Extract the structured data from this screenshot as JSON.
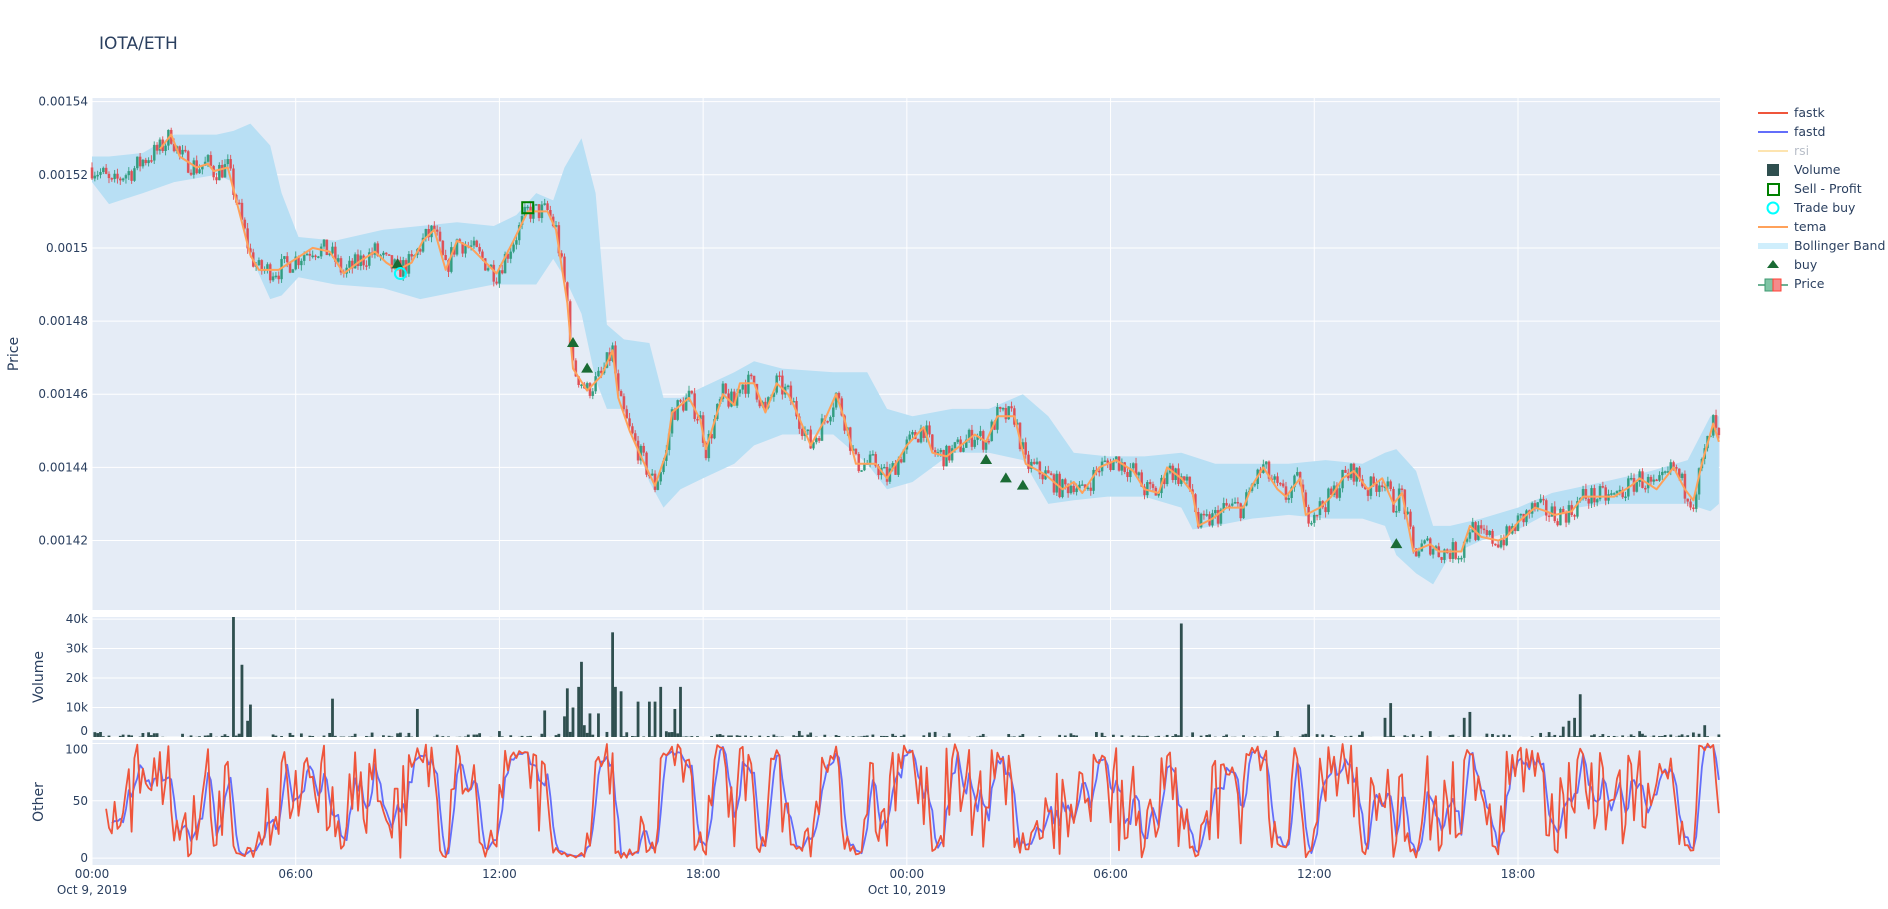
{
  "title": "IOTA/ETH",
  "chart_data": [
    {
      "type": "candlestick",
      "panel": "price",
      "ylabel": "Price",
      "ylim": [
        0.001401,
        0.001541
      ],
      "y_ticks": [
        "0.00142",
        "0.00144",
        "0.00146",
        "0.00148",
        "0.0015",
        "0.00152",
        "0.00154"
      ],
      "y_tick_values": [
        0.00142,
        0.00144,
        0.00146,
        0.00148,
        0.0015,
        0.00152,
        0.00154
      ],
      "grid": true,
      "price": {
        "time": [
          "2019-10-09 00:00",
          "2019-10-09 00:20",
          "2019-10-09 00:35",
          "2019-10-09 00:55",
          "2019-10-09 01:10",
          "2019-10-09 01:30",
          "2019-10-09 01:50",
          "2019-10-09 02:00",
          "2019-10-09 02:20",
          "2019-10-09 02:35",
          "2019-10-09 03:05",
          "2019-10-09 03:25",
          "2019-10-09 03:35",
          "2019-10-09 04:00",
          "2019-10-09 04:20",
          "2019-10-09 04:40",
          "2019-10-09 04:55",
          "2019-10-09 05:30",
          "2019-10-09 06:00",
          "2019-10-09 06:30",
          "2019-10-09 07:00",
          "2019-10-09 07:25",
          "2019-10-09 07:50",
          "2019-10-09 08:20",
          "2019-10-09 08:40",
          "2019-10-09 09:00",
          "2019-10-09 09:25",
          "2019-10-09 09:45",
          "2019-10-09 10:05",
          "2019-10-09 10:25",
          "2019-10-09 10:45",
          "2019-10-09 11:10",
          "2019-10-09 11:55",
          "2019-10-09 12:25",
          "2019-10-09 12:50",
          "2019-10-09 13:25",
          "2019-10-09 13:40",
          "2019-10-09 14:00",
          "2019-10-09 14:10",
          "2019-10-09 14:35",
          "2019-10-09 15:00",
          "2019-10-09 15:20",
          "2019-10-09 15:30",
          "2019-10-09 15:50",
          "2019-10-09 16:10",
          "2019-10-09 16:35",
          "2019-10-09 16:55",
          "2019-10-09 17:05",
          "2019-10-09 17:35",
          "2019-10-09 17:55",
          "2019-10-09 18:05",
          "2019-10-09 18:35",
          "2019-10-09 18:55",
          "2019-10-09 19:05",
          "2019-10-09 19:30",
          "2019-10-09 19:50",
          "2019-10-09 20:10",
          "2019-10-09 20:30",
          "2019-10-09 20:40",
          "2019-10-09 21:10",
          "2019-10-09 21:35",
          "2019-10-09 21:55",
          "2019-10-09 22:10",
          "2019-10-09 22:30",
          "2019-10-09 23:05",
          "2019-10-09 23:25",
          "2019-10-10 00:00",
          "2019-10-10 00:30",
          "2019-10-10 00:45",
          "2019-10-10 01:10",
          "2019-10-10 02:00",
          "2019-10-10 02:20",
          "2019-10-10 02:40",
          "2019-10-10 03:10",
          "2019-10-10 03:30",
          "2019-10-10 04:05",
          "2019-10-10 04:35",
          "2019-10-10 04:55",
          "2019-10-10 05:10",
          "2019-10-10 05:40",
          "2019-10-10 06:10",
          "2019-10-10 06:40",
          "2019-10-10 07:00",
          "2019-10-10 07:25",
          "2019-10-10 07:40",
          "2019-10-10 08:05",
          "2019-10-10 08:25",
          "2019-10-10 08:35",
          "2019-10-10 09:00",
          "2019-10-10 09:25",
          "2019-10-10 09:55",
          "2019-10-10 10:10",
          "2019-10-10 10:30",
          "2019-10-10 10:55",
          "2019-10-10 11:10",
          "2019-10-10 11:35",
          "2019-10-10 11:45",
          "2019-10-10 12:10",
          "2019-10-10 12:30",
          "2019-10-10 12:50",
          "2019-10-10 13:10",
          "2019-10-10 13:35",
          "2019-10-10 14:00",
          "2019-10-10 14:20",
          "2019-10-10 14:35",
          "2019-10-10 14:55",
          "2019-10-10 15:25",
          "2019-10-10 15:40",
          "2019-10-10 16:20",
          "2019-10-10 16:35",
          "2019-10-10 16:55",
          "2019-10-10 17:25",
          "2019-10-10 17:40",
          "2019-10-10 18:00",
          "2019-10-10 18:30",
          "2019-10-10 18:50",
          "2019-10-10 19:05",
          "2019-10-10 19:35",
          "2019-10-10 19:55",
          "2019-10-10 20:20",
          "2019-10-10 20:50",
          "2019-10-10 21:20",
          "2019-10-10 21:35",
          "2019-10-10 22:05",
          "2019-10-10 22:35",
          "2019-10-10 22:55",
          "2019-10-10 23:10",
          "2019-10-10 23:25",
          "2019-10-10 23:45",
          "2019-10-10 23:55"
        ],
        "close": [
          0.001522,
          0.00152,
          0.001517,
          0.00152,
          0.001521,
          0.001524,
          0.001526,
          0.001527,
          0.001531,
          0.001525,
          0.001522,
          0.001523,
          0.001521,
          0.001522,
          0.00151,
          0.001498,
          0.001494,
          0.001494,
          0.001497,
          0.0015,
          0.001499,
          0.001493,
          0.001496,
          0.001499,
          0.001496,
          0.001494,
          0.001496,
          0.001502,
          0.001505,
          0.001494,
          0.001502,
          0.0015,
          0.001493,
          0.001502,
          0.00151,
          0.00151,
          0.001505,
          0.001485,
          0.001467,
          0.001461,
          0.001465,
          0.001472,
          0.001459,
          0.00145,
          0.001443,
          0.001435,
          0.001444,
          0.001455,
          0.001459,
          0.001453,
          0.001445,
          0.00146,
          0.001457,
          0.001463,
          0.001463,
          0.001455,
          0.001463,
          0.00146,
          0.001457,
          0.001446,
          0.001453,
          0.00146,
          0.001453,
          0.001441,
          0.001441,
          0.001437,
          0.001446,
          0.001451,
          0.001444,
          0.001443,
          0.001449,
          0.001447,
          0.001454,
          0.001454,
          0.001441,
          0.001438,
          0.001434,
          0.001436,
          0.001433,
          0.00144,
          0.001442,
          0.001439,
          0.001434,
          0.001433,
          0.00144,
          0.001437,
          0.001433,
          0.001424,
          0.001426,
          0.001429,
          0.001429,
          0.001435,
          0.00144,
          0.001434,
          0.001432,
          0.001437,
          0.001427,
          0.001429,
          0.001432,
          0.001437,
          0.001439,
          0.001434,
          0.001437,
          0.00143,
          0.001433,
          0.001417,
          0.001419,
          0.001417,
          0.001417,
          0.001424,
          0.001421,
          0.00142,
          0.001421,
          0.001425,
          0.001429,
          0.001428,
          0.001427,
          0.001428,
          0.001432,
          0.001432,
          0.001432,
          0.001435,
          0.001437,
          0.001434,
          0.00144,
          0.001434,
          0.001431,
          0.001441,
          0.001452,
          0.001447
        ]
      },
      "tema_start": "2019-10-09 02:00",
      "bollinger": {
        "time": [
          "2019-10-09 00:00",
          "2019-10-09 00:30",
          "2019-10-09 01:30",
          "2019-10-09 02:25",
          "2019-10-09 03:40",
          "2019-10-09 04:10",
          "2019-10-09 04:40",
          "2019-10-09 05:15",
          "2019-10-09 05:35",
          "2019-10-09 06:05",
          "2019-10-09 07:10",
          "2019-10-09 08:35",
          "2019-10-09 09:40",
          "2019-10-09 10:45",
          "2019-10-09 11:50",
          "2019-10-09 12:30",
          "2019-10-09 13:05",
          "2019-10-09 13:35",
          "2019-10-09 13:55",
          "2019-10-09 14:25",
          "2019-10-09 14:50",
          "2019-10-09 15:10",
          "2019-10-09 15:40",
          "2019-10-09 16:25",
          "2019-10-09 16:50",
          "2019-10-09 17:20",
          "2019-10-09 18:00",
          "2019-10-09 18:55",
          "2019-10-09 19:30",
          "2019-10-09 20:20",
          "2019-10-09 21:50",
          "2019-10-09 22:50",
          "2019-10-09 23:25",
          "2019-10-10 00:10",
          "2019-10-10 01:20",
          "2019-10-10 02:25",
          "2019-10-10 03:25",
          "2019-10-10 04:10",
          "2019-10-10 04:55",
          "2019-10-10 05:55",
          "2019-10-10 07:00",
          "2019-10-10 08:05",
          "2019-10-10 08:25",
          "2019-10-10 09:05",
          "2019-10-10 10:10",
          "2019-10-10 11:15",
          "2019-10-10 12:20",
          "2019-10-10 13:25",
          "2019-10-10 14:05",
          "2019-10-10 14:25",
          "2019-10-10 15:00",
          "2019-10-10 15:30",
          "2019-10-10 16:00",
          "2019-10-10 16:55",
          "2019-10-10 18:00",
          "2019-10-10 19:00",
          "2019-10-10 20:30",
          "2019-10-10 21:55",
          "2019-10-10 23:00",
          "2019-10-10 23:40",
          "2019-10-10 23:55"
        ],
        "upper": [
          0.001525,
          0.001525,
          0.001526,
          0.001531,
          0.001531,
          0.001532,
          0.001534,
          0.001528,
          0.001515,
          0.001503,
          0.001502,
          0.001505,
          0.001506,
          0.001507,
          0.001506,
          0.001509,
          0.001515,
          0.001513,
          0.001522,
          0.00153,
          0.001515,
          0.001479,
          0.001475,
          0.001474,
          0.001459,
          0.001459,
          0.001462,
          0.001466,
          0.001469,
          0.001467,
          0.001466,
          0.001466,
          0.001456,
          0.001454,
          0.001456,
          0.001456,
          0.00146,
          0.001454,
          0.001444,
          0.001443,
          0.001443,
          0.001444,
          0.001443,
          0.001441,
          0.001441,
          0.001441,
          0.001442,
          0.001441,
          0.001444,
          0.001445,
          0.001439,
          0.001424,
          0.001424,
          0.001426,
          0.001429,
          0.001433,
          0.001436,
          0.001439,
          0.001442,
          0.001454,
          0.001454
        ],
        "lower": [
          0.001518,
          0.001512,
          0.001515,
          0.001518,
          0.00152,
          0.001518,
          0.001498,
          0.001486,
          0.001487,
          0.001492,
          0.00149,
          0.001489,
          0.001486,
          0.001488,
          0.00149,
          0.00149,
          0.00149,
          0.001497,
          0.001492,
          0.001482,
          0.001464,
          0.001456,
          0.001456,
          0.001436,
          0.001429,
          0.001434,
          0.001437,
          0.001441,
          0.001446,
          0.001449,
          0.001449,
          0.001441,
          0.001434,
          0.001436,
          0.001444,
          0.001444,
          0.001442,
          0.00143,
          0.001431,
          0.001432,
          0.001432,
          0.001429,
          0.001423,
          0.001424,
          0.001426,
          0.001427,
          0.001426,
          0.001426,
          0.001424,
          0.001416,
          0.001411,
          0.001408,
          0.001416,
          0.00142,
          0.001423,
          0.001428,
          0.00143,
          0.00143,
          0.00143,
          0.001428,
          0.00143
        ]
      },
      "buy_markers": [
        {
          "time": "2019-10-09 09:00",
          "price": 0.0014955
        },
        {
          "time": "2019-10-09 14:10",
          "price": 0.001474
        },
        {
          "time": "2019-10-09 14:35",
          "price": 0.001467
        },
        {
          "time": "2019-10-10 02:20",
          "price": 0.001442
        },
        {
          "time": "2019-10-10 02:55",
          "price": 0.001437
        },
        {
          "time": "2019-10-10 03:25",
          "price": 0.001435
        },
        {
          "time": "2019-10-10 14:25",
          "price": 0.001419
        }
      ],
      "trade_buy": [
        {
          "time": "2019-10-09 09:05",
          "price": 0.001493
        }
      ],
      "sell_profit": [
        {
          "time": "2019-10-09 12:50",
          "price": 0.001511
        }
      ]
    },
    {
      "type": "bar",
      "panel": "volume",
      "ylabel": "Volume",
      "ylim": [
        0,
        40700
      ],
      "y_ticks": [
        "0",
        "10k",
        "20k",
        "30k",
        "40k"
      ],
      "y_tick_values": [
        0,
        10000,
        20000,
        30000,
        40000
      ],
      "spikes": [
        {
          "time": "2019-10-09 04:10",
          "value": 41000
        },
        {
          "time": "2019-10-09 04:25",
          "value": 24500
        },
        {
          "time": "2019-10-09 04:35",
          "value": 5500
        },
        {
          "time": "2019-10-09 04:40",
          "value": 11000
        },
        {
          "time": "2019-10-09 07:05",
          "value": 13000
        },
        {
          "time": "2019-10-09 09:35",
          "value": 9500
        },
        {
          "time": "2019-10-09 13:20",
          "value": 9000
        },
        {
          "time": "2019-10-09 13:55",
          "value": 7000
        },
        {
          "time": "2019-10-09 14:00",
          "value": 16500
        },
        {
          "time": "2019-10-09 14:10",
          "value": 10000
        },
        {
          "time": "2019-10-09 14:20",
          "value": 17000
        },
        {
          "time": "2019-10-09 14:25",
          "value": 25500
        },
        {
          "time": "2019-10-09 14:30",
          "value": 4000
        },
        {
          "time": "2019-10-09 14:40",
          "value": 8000
        },
        {
          "time": "2019-10-09 14:55",
          "value": 8000
        },
        {
          "time": "2019-10-09 15:20",
          "value": 35500
        },
        {
          "time": "2019-10-09 15:25",
          "value": 17000
        },
        {
          "time": "2019-10-09 15:35",
          "value": 15500
        },
        {
          "time": "2019-10-09 16:05",
          "value": 12000
        },
        {
          "time": "2019-10-09 16:25",
          "value": 12000
        },
        {
          "time": "2019-10-09 16:35",
          "value": 12000
        },
        {
          "time": "2019-10-09 16:45",
          "value": 17000
        },
        {
          "time": "2019-10-09 17:10",
          "value": 9500
        },
        {
          "time": "2019-10-09 17:20",
          "value": 17000
        },
        {
          "time": "2019-10-10 08:05",
          "value": 38500
        },
        {
          "time": "2019-10-10 11:50",
          "value": 11000
        },
        {
          "time": "2019-10-10 14:05",
          "value": 6500
        },
        {
          "time": "2019-10-10 14:15",
          "value": 11500
        },
        {
          "time": "2019-10-10 16:25",
          "value": 6500
        },
        {
          "time": "2019-10-10 16:35",
          "value": 8500
        },
        {
          "time": "2019-10-10 19:20",
          "value": 3500
        },
        {
          "time": "2019-10-10 19:30",
          "value": 5500
        },
        {
          "time": "2019-10-10 19:40",
          "value": 6500
        },
        {
          "time": "2019-10-10 19:50",
          "value": 14500
        },
        {
          "time": "2019-10-10 23:30",
          "value": 4000
        }
      ]
    },
    {
      "type": "line",
      "panel": "other",
      "ylabel": "Other",
      "ylim": [
        -6,
        103
      ],
      "y_ticks": [
        "0",
        "50",
        "100"
      ],
      "y_tick_values": [
        0,
        50,
        100
      ],
      "series_names": [
        "fastk",
        "fastd"
      ]
    }
  ],
  "x_axis": {
    "range": [
      "2019-10-09 00:00",
      "2019-10-10 23:57"
    ],
    "ticks": [
      {
        "time": "2019-10-09 00:00",
        "label": "00:00",
        "sub": "Oct 9, 2019"
      },
      {
        "time": "2019-10-09 06:00",
        "label": "06:00",
        "sub": ""
      },
      {
        "time": "2019-10-09 12:00",
        "label": "12:00",
        "sub": ""
      },
      {
        "time": "2019-10-09 18:00",
        "label": "18:00",
        "sub": ""
      },
      {
        "time": "2019-10-10 00:00",
        "label": "00:00",
        "sub": "Oct 10, 2019"
      },
      {
        "time": "2019-10-10 06:00",
        "label": "06:00",
        "sub": ""
      },
      {
        "time": "2019-10-10 12:00",
        "label": "12:00",
        "sub": ""
      },
      {
        "time": "2019-10-10 18:00",
        "label": "18:00",
        "sub": ""
      }
    ]
  },
  "legend": {
    "position": "right",
    "items": [
      {
        "label": "fastk",
        "icon": "line",
        "color": "#ef553b"
      },
      {
        "label": "fastd",
        "icon": "line",
        "color": "#636efa"
      },
      {
        "label": "rsi",
        "icon": "line",
        "color": "#fde4b0",
        "hidden": true
      },
      {
        "label": "Volume",
        "icon": "square",
        "color": "#2f4f4f"
      },
      {
        "label": "Sell - Profit",
        "icon": "square-open",
        "color": "#008000"
      },
      {
        "label": "Trade buy",
        "icon": "circle-open",
        "color": "#00ffff"
      },
      {
        "label": "tema",
        "icon": "line",
        "color": "#ffa15a"
      },
      {
        "label": "Bollinger Band",
        "icon": "band",
        "color": "#cfeefc"
      },
      {
        "label": "buy",
        "icon": "triangle-up",
        "color": "#1a6b34"
      },
      {
        "label": "Price",
        "icon": "candle",
        "color": "#3d9970"
      }
    ]
  },
  "colors": {
    "plot_bg": "#e5ecf6",
    "grid": "#ffffff",
    "increasing": "#2b9a7a",
    "decreasing": "#e0474c",
    "volume": "#2f4f4f",
    "tema": "#ffa15a",
    "bollinger_fill": "#b8dff4",
    "fastk": "#ef553b",
    "fastd": "#636efa",
    "buy": "#1a6b34",
    "trade_buy": "#00ffff",
    "sell_profit": "#008000"
  }
}
